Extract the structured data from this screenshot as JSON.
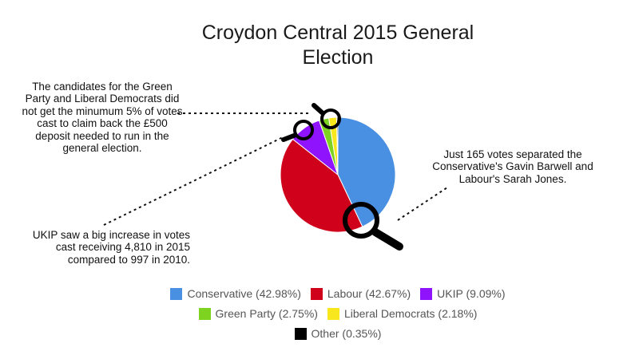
{
  "chart_data": {
    "type": "pie",
    "title_line1": "Croydon Central 2015 General",
    "title_line2": "Election",
    "slices": [
      {
        "label": "Conservative",
        "value": 42.98,
        "legend": "Conservative (42.98%)",
        "color": "#4a90e2"
      },
      {
        "label": "Labour",
        "value": 42.67,
        "legend": "Labour (42.67%)",
        "color": "#d0021b"
      },
      {
        "label": "UKIP",
        "value": 9.09,
        "legend": "UKIP (9.09%)",
        "color": "#9013fe"
      },
      {
        "label": "Green Party",
        "value": 2.75,
        "legend": "Green Party (2.75%)",
        "color": "#7ed321"
      },
      {
        "label": "Liberal Democrats",
        "value": 2.18,
        "legend": "Liberal Democrats (2.18%)",
        "color": "#f8e71c"
      },
      {
        "label": "Other",
        "value": 0.35,
        "legend": "Other (0.35%)",
        "color": "#000000"
      }
    ],
    "legend_position": "bottom",
    "annotations": {
      "green_libdem": [
        "The candidates for the Green",
        "Party and Liberal Democrats did",
        "not get the minumum 5% of votes",
        "cast to claim back the £500",
        "deposit needed to run in the",
        "general election."
      ],
      "ukip": [
        "UKIP saw a big increase in votes",
        "cast receiving 4,810 in 2015",
        "compared to 997 in 2010."
      ],
      "conservative": [
        "Just 165 votes separated the",
        "Conservative's Gavin Barwell and",
        "Labour's Sarah Jones."
      ]
    }
  }
}
